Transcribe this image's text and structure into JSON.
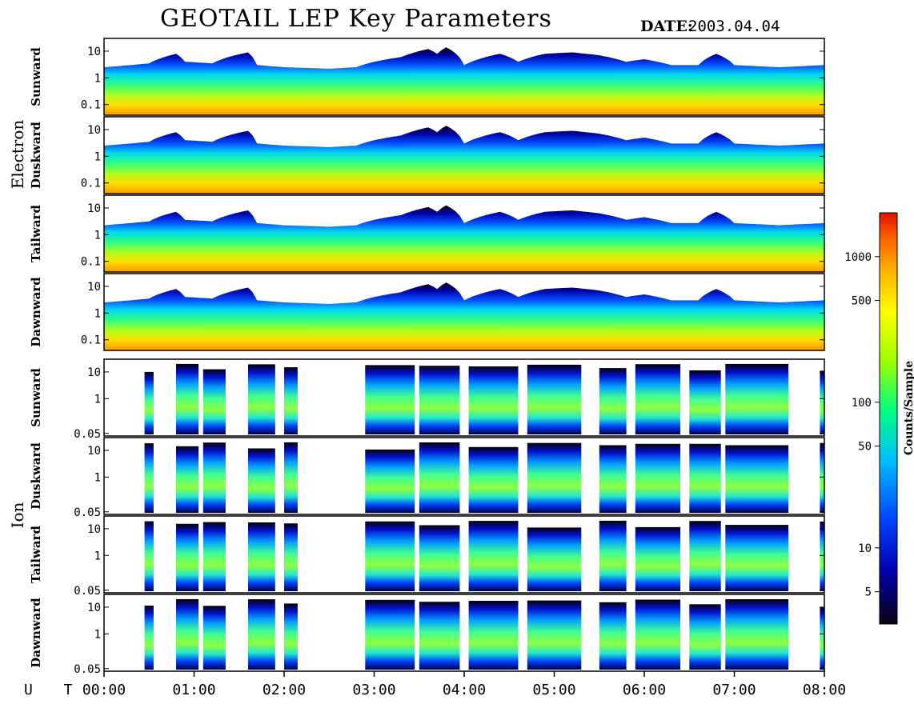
{
  "title": "GEOTAIL LEP Key Parameters",
  "date_label": "DATE:",
  "date_value": "2003.04.04",
  "colorbar": {
    "label": "Counts/Sample",
    "ticks": [
      {
        "v": 5,
        "label": "5"
      },
      {
        "v": 10,
        "label": "10"
      },
      {
        "v": 50,
        "label": "50"
      },
      {
        "v": 100,
        "label": "100"
      },
      {
        "v": 500,
        "label": "500"
      },
      {
        "v": 1000,
        "label": "1000"
      }
    ],
    "range": [
      3,
      2000
    ],
    "colors": [
      "#0a0010",
      "#0000b0",
      "#0040ff",
      "#00c0ff",
      "#00ff80",
      "#a0ff00",
      "#ffff00",
      "#ffb000",
      "#ff6000",
      "#e01000"
    ]
  },
  "chart_data": {
    "type": "heatmap",
    "x_axis": {
      "label": "U T",
      "range": [
        "00:00",
        "08:00"
      ],
      "ticks": [
        "00:00",
        "01:00",
        "02:00",
        "03:00",
        "04:00",
        "05:00",
        "06:00",
        "07:00",
        "08:00"
      ]
    },
    "groups": [
      {
        "name": "Electron",
        "panels": [
          {
            "label": "Sunward",
            "yticks": [
              "10",
              "1",
              "0.1"
            ],
            "log_y_range": [
              0.04,
              30
            ]
          },
          {
            "label": "Duskward",
            "yticks": [
              "10",
              "1",
              "0.1"
            ],
            "log_y_range": [
              0.04,
              30
            ]
          },
          {
            "label": "Tailward",
            "yticks": [
              "10",
              "1",
              "0.1"
            ],
            "log_y_range": [
              0.04,
              30
            ]
          },
          {
            "label": "Dawnward",
            "yticks": [
              "10",
              "1",
              "0.1"
            ],
            "log_y_range": [
              0.04,
              30
            ]
          }
        ]
      },
      {
        "name": "Ion",
        "panels": [
          {
            "label": "Sunward",
            "yticks": [
              "10",
              "1",
              "0.05"
            ],
            "log_y_range": [
              0.04,
              30
            ]
          },
          {
            "label": "Duskward",
            "yticks": [
              "10",
              "1",
              "0.05"
            ],
            "log_y_range": [
              0.04,
              30
            ]
          },
          {
            "label": "Tailward",
            "yticks": [
              "10",
              "1",
              "0.05"
            ],
            "log_y_range": [
              0.04,
              30
            ]
          },
          {
            "label": "Dawnward",
            "yticks": [
              "10",
              "1",
              "0.05"
            ],
            "log_y_range": [
              0.04,
              30
            ]
          }
        ]
      }
    ],
    "electron_upper_boundary_keV": [
      [
        0.0,
        2.5
      ],
      [
        0.3,
        3.0
      ],
      [
        0.5,
        3.5
      ],
      [
        0.8,
        8
      ],
      [
        0.9,
        4
      ],
      [
        1.2,
        3.5
      ],
      [
        1.6,
        9
      ],
      [
        1.7,
        3
      ],
      [
        2.0,
        2.5
      ],
      [
        2.5,
        2.2
      ],
      [
        2.8,
        2.5
      ],
      [
        3.0,
        4
      ],
      [
        3.3,
        6
      ],
      [
        3.6,
        12
      ],
      [
        3.7,
        8
      ],
      [
        3.8,
        14
      ],
      [
        4.0,
        3
      ],
      [
        4.4,
        8
      ],
      [
        4.6,
        4
      ],
      [
        4.9,
        8
      ],
      [
        5.2,
        9
      ],
      [
        5.5,
        7
      ],
      [
        5.8,
        4
      ],
      [
        6.0,
        5
      ],
      [
        6.3,
        3
      ],
      [
        6.6,
        3
      ],
      [
        6.8,
        8
      ],
      [
        7.0,
        3
      ],
      [
        7.5,
        2.5
      ],
      [
        8.0,
        3
      ]
    ],
    "ion_coverage_hours": [
      [
        0.45,
        0.55
      ],
      [
        0.8,
        1.05
      ],
      [
        1.1,
        1.35
      ],
      [
        1.6,
        1.9
      ],
      [
        2.0,
        2.15
      ],
      [
        2.9,
        3.45
      ],
      [
        3.5,
        3.95
      ],
      [
        4.05,
        4.6
      ],
      [
        4.7,
        5.3
      ],
      [
        5.5,
        5.8
      ],
      [
        5.9,
        6.4
      ],
      [
        6.5,
        6.85
      ],
      [
        6.9,
        7.6
      ],
      [
        7.95,
        8.0
      ]
    ]
  }
}
